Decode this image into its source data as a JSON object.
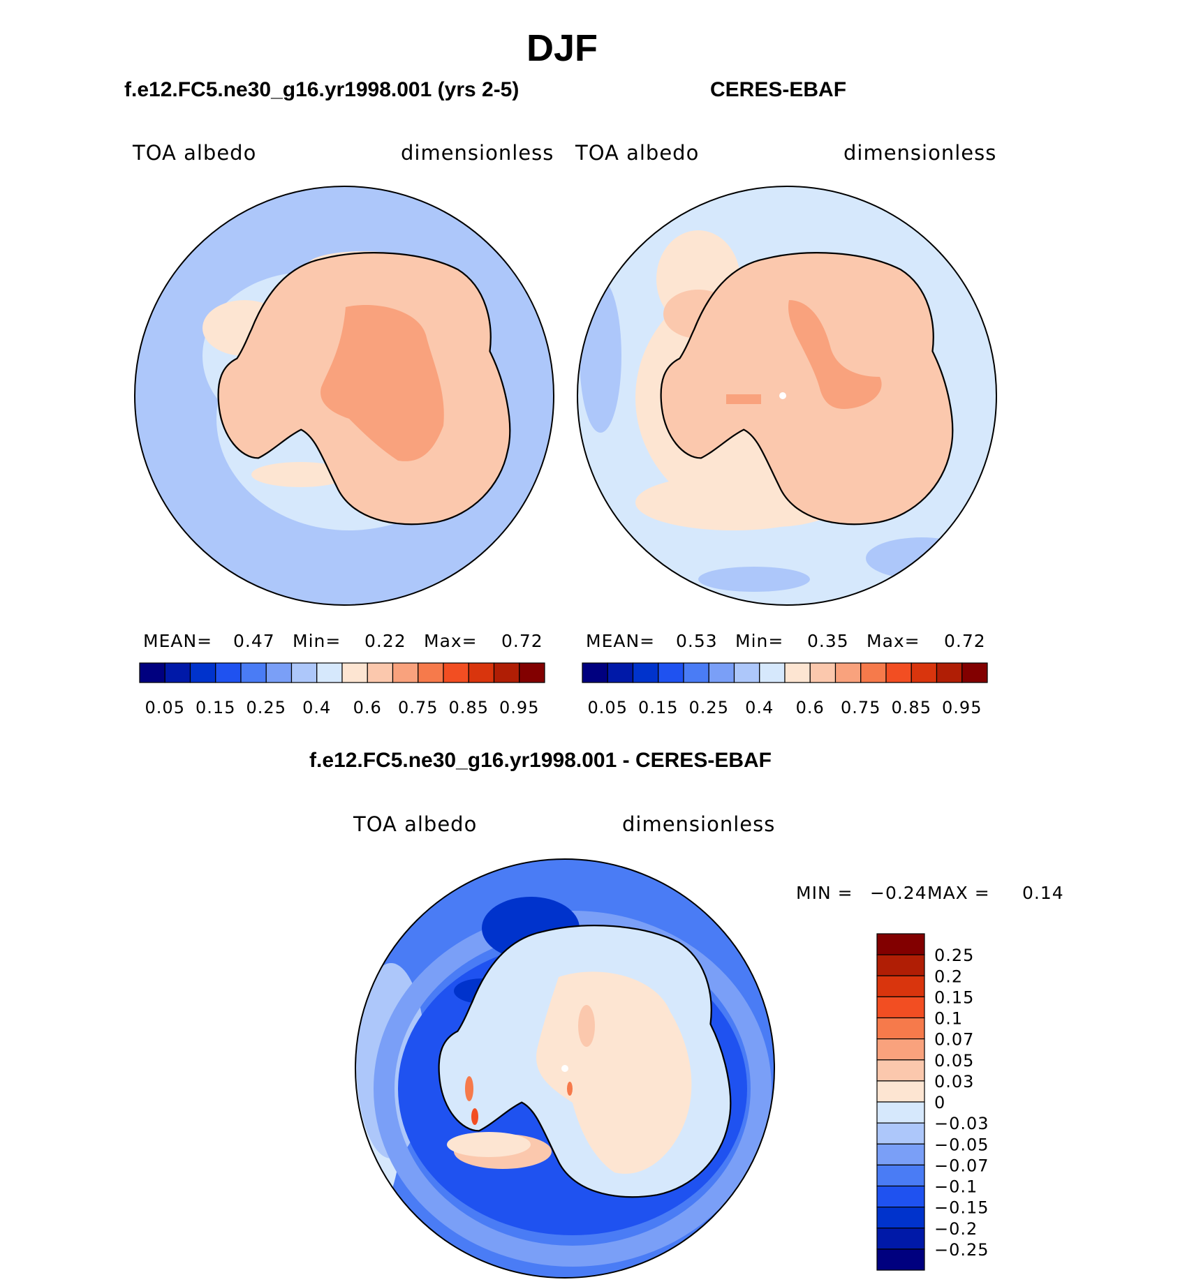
{
  "title": "DJF",
  "panels": [
    {
      "title": "f.e12.FC5.ne30_g16.yr1998.001 (yrs 2-5)",
      "left_label": "TOA albedo",
      "right_label": "dimensionless",
      "stats": {
        "mean_label": "MEAN=",
        "mean": "0.47",
        "min_label": "Min=",
        "min": "0.22",
        "max_label": "Max=",
        "max": "0.72"
      }
    },
    {
      "title": "CERES-EBAF",
      "left_label": "TOA albedo",
      "right_label": "dimensionless",
      "stats": {
        "mean_label": "MEAN=",
        "mean": "0.53",
        "min_label": "Min=",
        "min": "0.35",
        "max_label": "Max=",
        "max": "0.72"
      }
    },
    {
      "title": "f.e12.FC5.ne30_g16.yr1998.001 - CERES-EBAF",
      "left_label": "TOA albedo",
      "right_label": "dimensionless",
      "stats": {
        "min_label": "MIN =",
        "min": "−0.24",
        "max_label": "MAX =",
        "max": "0.14"
      }
    }
  ],
  "albedo_colorbar": {
    "colors": [
      "#00007f",
      "#0019a8",
      "#0033cc",
      "#1f52f0",
      "#4a7cf5",
      "#7a9ff7",
      "#adc7fa",
      "#d6e8fc",
      "#fde5d2",
      "#fbc8ad",
      "#f9a27d",
      "#f67a4b",
      "#f24e22",
      "#d9350d",
      "#b01e05",
      "#820000"
    ],
    "tick_labels": [
      "0.05",
      "0.15",
      "0.25",
      "0.4",
      "0.6",
      "0.75",
      "0.85",
      "0.95"
    ]
  },
  "diff_colorbar": {
    "colors": [
      "#00007f",
      "#0019a8",
      "#0033cc",
      "#1f52f0",
      "#4a7cf5",
      "#7a9ff7",
      "#adc7fa",
      "#d6e8fc",
      "#fde5d2",
      "#fbc8ad",
      "#f9a27d",
      "#f67a4b",
      "#f24e22",
      "#d9350d",
      "#b01e05",
      "#820000"
    ],
    "tick_labels": [
      "0.25",
      "0.2",
      "0.15",
      "0.1",
      "0.07",
      "0.05",
      "0.03",
      "0",
      "−0.03",
      "−0.05",
      "−0.07",
      "−0.1",
      "−0.15",
      "−0.2",
      "−0.25"
    ]
  }
}
